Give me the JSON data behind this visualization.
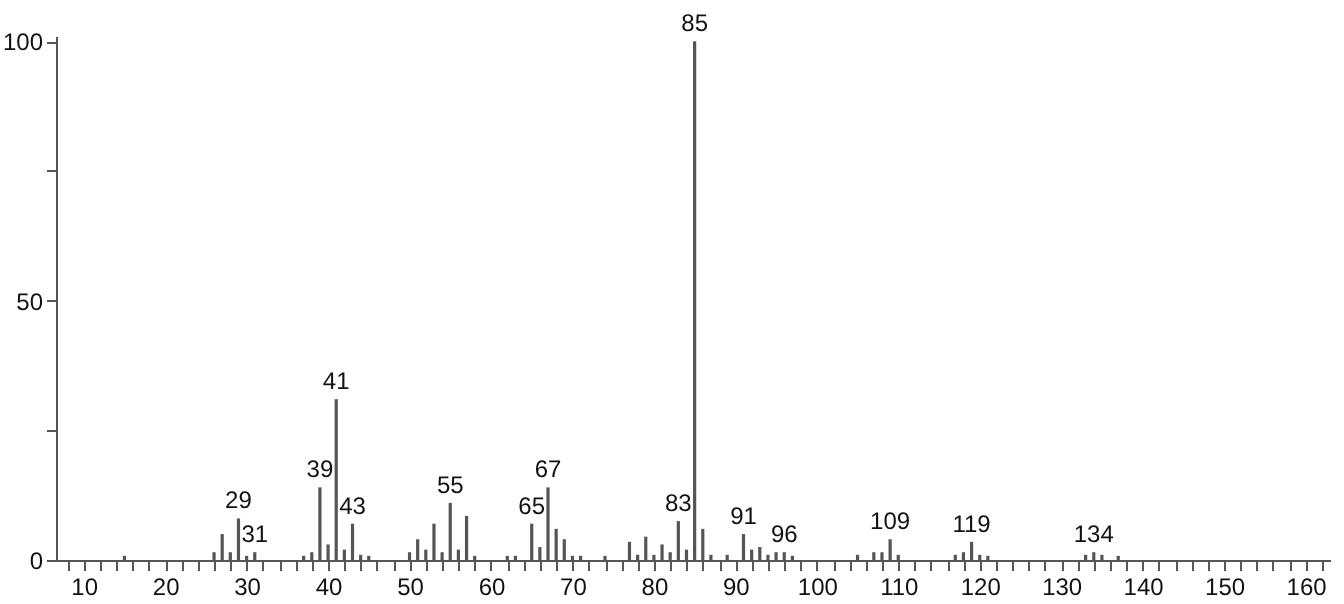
{
  "chart_data": {
    "type": "bar",
    "color": "#555555",
    "x": [
      15,
      26,
      27,
      28,
      29,
      30,
      31,
      37,
      38,
      39,
      40,
      41,
      42,
      43,
      44,
      45,
      50,
      51,
      52,
      53,
      54,
      55,
      56,
      57,
      58,
      62,
      63,
      65,
      66,
      67,
      68,
      69,
      70,
      71,
      74,
      77,
      78,
      79,
      80,
      81,
      82,
      83,
      84,
      85,
      86,
      87,
      89,
      91,
      92,
      93,
      94,
      95,
      96,
      97,
      105,
      107,
      108,
      109,
      110,
      117,
      118,
      119,
      120,
      121,
      133,
      134,
      135,
      137
    ],
    "values": [
      0.8,
      1.5,
      5,
      1.5,
      8,
      0.8,
      1.5,
      0.8,
      1.5,
      14,
      3,
      31,
      2,
      7,
      1,
      0.8,
      1.5,
      4,
      2,
      7,
      1.5,
      11,
      2,
      8.5,
      0.8,
      0.8,
      0.8,
      7,
      2.5,
      14,
      6,
      4,
      0.8,
      0.8,
      0.8,
      3.5,
      1,
      4.5,
      1,
      3,
      1.5,
      7.5,
      2,
      100,
      6,
      1,
      1,
      5,
      2,
      2.5,
      1,
      1.5,
      1.5,
      0.8,
      1,
      1.5,
      1.5,
      4,
      1,
      1,
      1.5,
      3.5,
      1,
      0.8,
      1,
      1.5,
      1,
      0.8
    ],
    "annotations": [
      {
        "text": "29",
        "x": 29,
        "y": 8
      },
      {
        "text": "31",
        "x": 31,
        "y": 1.5
      },
      {
        "text": "39",
        "x": 39,
        "y": 14
      },
      {
        "text": "41",
        "x": 41,
        "y": 31
      },
      {
        "text": "43",
        "x": 43,
        "y": 7
      },
      {
        "text": "55",
        "x": 55,
        "y": 11
      },
      {
        "text": "65",
        "x": 65,
        "y": 7
      },
      {
        "text": "67",
        "x": 67,
        "y": 14
      },
      {
        "text": "83",
        "x": 83,
        "y": 7.5
      },
      {
        "text": "85",
        "x": 85,
        "y": 100
      },
      {
        "text": "91",
        "x": 91,
        "y": 5
      },
      {
        "text": "96",
        "x": 96,
        "y": 1.5
      },
      {
        "text": "109",
        "x": 109,
        "y": 4
      },
      {
        "text": "119",
        "x": 119,
        "y": 3.5
      },
      {
        "text": "134",
        "x": 134,
        "y": 1.5
      }
    ],
    "xlim": [
      6.6,
      163
    ],
    "xticks": [
      {
        "value": 8,
        "label": null
      },
      10,
      {
        "value": 12,
        "label": null
      },
      {
        "value": 14,
        "label": null
      },
      {
        "value": 16,
        "label": null
      },
      {
        "value": 18,
        "label": null
      },
      20,
      {
        "value": 22,
        "label": null
      },
      {
        "value": 24,
        "label": null
      },
      {
        "value": 26,
        "label": null
      },
      {
        "value": 28,
        "label": null
      },
      30,
      {
        "value": 32,
        "label": null
      },
      {
        "value": 34,
        "label": null
      },
      {
        "value": 36,
        "label": null
      },
      {
        "value": 38,
        "label": null
      },
      40,
      {
        "value": 42,
        "label": null
      },
      {
        "value": 44,
        "label": null
      },
      {
        "value": 46,
        "label": null
      },
      {
        "value": 48,
        "label": null
      },
      50,
      {
        "value": 52,
        "label": null
      },
      {
        "value": 54,
        "label": null
      },
      {
        "value": 56,
        "label": null
      },
      {
        "value": 58,
        "label": null
      },
      60,
      {
        "value": 62,
        "label": null
      },
      {
        "value": 64,
        "label": null
      },
      {
        "value": 66,
        "label": null
      },
      {
        "value": 68,
        "label": null
      },
      70,
      {
        "value": 72,
        "label": null
      },
      {
        "value": 74,
        "label": null
      },
      {
        "value": 76,
        "label": null
      },
      {
        "value": 78,
        "label": null
      },
      80,
      {
        "value": 82,
        "label": null
      },
      {
        "value": 84,
        "label": null
      },
      {
        "value": 86,
        "label": null
      },
      {
        "value": 88,
        "label": null
      },
      90,
      {
        "value": 92,
        "label": null
      },
      {
        "value": 94,
        "label": null
      },
      {
        "value": 96,
        "label": null
      },
      {
        "value": 98,
        "label": null
      },
      100,
      {
        "value": 102,
        "label": null
      },
      {
        "value": 104,
        "label": null
      },
      {
        "value": 106,
        "label": null
      },
      {
        "value": 108,
        "label": null
      },
      110,
      {
        "value": 112,
        "label": null
      },
      {
        "value": 114,
        "label": null
      },
      {
        "value": 116,
        "label": null
      },
      {
        "value": 118,
        "label": null
      },
      120,
      {
        "value": 122,
        "label": null
      },
      {
        "value": 124,
        "label": null
      },
      {
        "value": 126,
        "label": null
      },
      {
        "value": 128,
        "label": null
      },
      130,
      {
        "value": 132,
        "label": null
      },
      {
        "value": 134,
        "label": null
      },
      {
        "value": 136,
        "label": null
      },
      {
        "value": 138,
        "label": null
      },
      140,
      {
        "value": 142,
        "label": null
      },
      {
        "value": 144,
        "label": null
      },
      {
        "value": 146,
        "label": null
      },
      {
        "value": 148,
        "label": null
      },
      150,
      {
        "value": 152,
        "label": null
      },
      {
        "value": 154,
        "label": null
      },
      {
        "value": 156,
        "label": null
      },
      {
        "value": 158,
        "label": null
      },
      160,
      {
        "value": 162,
        "label": null
      }
    ],
    "ylim": [
      0,
      101
    ],
    "yticks": [
      0,
      {
        "value": 25,
        "label": null
      },
      50,
      {
        "value": 75,
        "label": null
      },
      100
    ],
    "grid": false
  }
}
